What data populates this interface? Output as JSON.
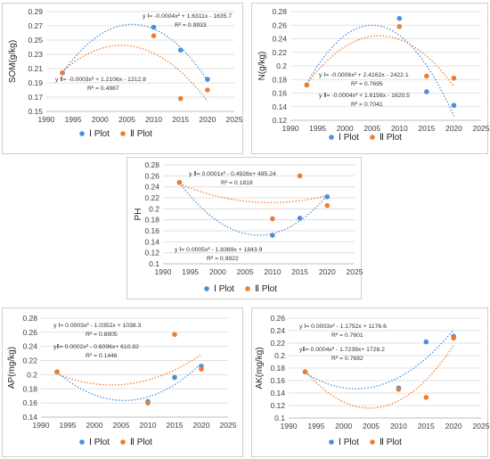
{
  "chart_data": [
    {
      "type": "scatter",
      "ylabel": "SOM(g/kg)",
      "xlim": [
        1990,
        2025
      ],
      "ylim": [
        0.15,
        0.29
      ],
      "x_ticks": [
        "1990",
        "1995",
        "2000",
        "2005",
        "2010",
        "2015",
        "2020",
        "2025"
      ],
      "y_ticks": [
        "0.15",
        "0.17",
        "0.19",
        "0.21",
        "0.23",
        "0.25",
        "0.27",
        "0.29"
      ],
      "series": [
        {
          "name": "Ⅰ Plot",
          "color": "#4a90d9",
          "x": [
            1993,
            2010,
            2015,
            2020
          ],
          "y": [
            0.204,
            0.268,
            0.236,
            0.195
          ],
          "fit": [
            -0.0004,
            1.6311,
            -1635.7
          ]
        },
        {
          "name": "Ⅱ Plot",
          "color": "#ed7d31",
          "x": [
            1993,
            2010,
            2015,
            2020
          ],
          "y": [
            0.204,
            0.256,
            0.168,
            0.18
          ],
          "fit": [
            -0.0003,
            1.2106,
            -1212.8
          ]
        }
      ],
      "equations": [
        {
          "line1": "y Ⅰ= -0.0004x² + 1.6311x - 1635.7",
          "line2": "R² = 0.9933"
        },
        {
          "line1": "y Ⅱ= -0.0003x² + 1.2106x - 1212.8",
          "line2": "R² = 0.4987"
        }
      ],
      "legend": [
        "Ⅰ Plot",
        "Ⅱ Plot"
      ]
    },
    {
      "type": "scatter",
      "ylabel": "N(g/kg)",
      "xlim": [
        1990,
        2025
      ],
      "ylim": [
        0.12,
        0.28
      ],
      "x_ticks": [
        "1990",
        "1995",
        "2000",
        "2005",
        "2010",
        "2015",
        "2020",
        "2025"
      ],
      "y_ticks": [
        "0.12",
        "0.14",
        "0.16",
        "0.18",
        "0.2",
        "0.22",
        "0.24",
        "0.26",
        "0.28"
      ],
      "series": [
        {
          "name": "Ⅰ Plot",
          "color": "#4a90d9",
          "x": [
            1993,
            2010,
            2015,
            2020
          ],
          "y": [
            0.172,
            0.27,
            0.162,
            0.142
          ],
          "fit": [
            -0.0006,
            2.4162,
            -2422.1
          ]
        },
        {
          "name": "Ⅱ Plot",
          "color": "#ed7d31",
          "x": [
            1993,
            2010,
            2015,
            2020
          ],
          "y": [
            0.172,
            0.258,
            0.185,
            0.182
          ],
          "fit": [
            -0.0004,
            1.6156,
            -1620.5
          ]
        }
      ],
      "equations": [
        {
          "line1": "y Ⅰ= -0.0006x² + 2.4162x - 2422.1",
          "line2": "R² = 0.7695"
        },
        {
          "line1": "y Ⅱ= -0.0004x² + 1.6156x - 1620.5",
          "line2": "R² = 0.7041"
        }
      ],
      "legend": [
        "Ⅰ Plot",
        "Ⅱ Plot"
      ]
    },
    {
      "type": "scatter",
      "ylabel": "PH",
      "xlim": [
        1990,
        2025
      ],
      "ylim": [
        0.1,
        0.28
      ],
      "x_ticks": [
        "1990",
        "1995",
        "2000",
        "2005",
        "2010",
        "2015",
        "2020",
        "2025"
      ],
      "y_ticks": [
        "0.1",
        "0.12",
        "0.14",
        "0.16",
        "0.18",
        "0.2",
        "0.22",
        "0.24",
        "0.26",
        "0.28"
      ],
      "series": [
        {
          "name": "Ⅰ Plot",
          "color": "#4a90d9",
          "x": [
            1993,
            2010,
            2015,
            2020
          ],
          "y": [
            0.248,
            0.152,
            0.183,
            0.222
          ],
          "fit": [
            0.0005,
            -1.8369,
            1843.9
          ]
        },
        {
          "name": "Ⅱ Plot",
          "color": "#ed7d31",
          "x": [
            1993,
            2010,
            2015,
            2020
          ],
          "y": [
            0.248,
            0.182,
            0.26,
            0.206
          ],
          "fit": [
            0.0001,
            -0.4926,
            495.24
          ]
        }
      ],
      "equations": [
        {
          "line1": "y Ⅱ= 0.0001x² - 0.4926x+ 495.24",
          "line2": "R² = 0.1819"
        },
        {
          "line1": "y Ⅰ= 0.0005x² - 1.8369x + 1843.9",
          "line2": "R² = 0.9922"
        }
      ],
      "legend": [
        "Ⅰ Plot",
        "Ⅱ Plot"
      ]
    },
    {
      "type": "scatter",
      "ylabel": "AP(mg/kg)",
      "xlim": [
        1990,
        2025
      ],
      "ylim": [
        0.14,
        0.28
      ],
      "x_ticks": [
        "1990",
        "1995",
        "2000",
        "2005",
        "2010",
        "2015",
        "2020",
        "2025"
      ],
      "y_ticks": [
        "0.14",
        "0.16",
        "0.18",
        "0.2",
        "0.22",
        "0.24",
        "0.26",
        "0.28"
      ],
      "series": [
        {
          "name": "Ⅰ Plot",
          "color": "#4a90d9",
          "x": [
            1993,
            2010,
            2015,
            2020
          ],
          "y": [
            0.204,
            0.162,
            0.196,
            0.212
          ],
          "fit": [
            0.0003,
            -1.0352,
            1038.3
          ]
        },
        {
          "name": "Ⅱ Plot",
          "color": "#ed7d31",
          "x": [
            1993,
            2010,
            2015,
            2020
          ],
          "y": [
            0.204,
            0.16,
            0.257,
            0.208
          ],
          "fit": [
            0.0002,
            -0.6096,
            610.82
          ]
        }
      ],
      "equations": [
        {
          "line1": "y Ⅰ= 0.0003x² - 1.0352x + 1038.3",
          "line2": "R² = 0.8905"
        },
        {
          "line1": "yⅡ= 0.0002x² - 0.6096x+ 610.82",
          "line2": "R² = 0.1446"
        }
      ],
      "legend": [
        "Ⅰ Plot",
        "Ⅱ Plot"
      ]
    },
    {
      "type": "scatter",
      "ylabel": "AK(mg/kg)",
      "xlim": [
        1990,
        2025
      ],
      "ylim": [
        0.1,
        0.26
      ],
      "x_ticks": [
        "1990",
        "1995",
        "2000",
        "2005",
        "2010",
        "2015",
        "2020",
        "2025"
      ],
      "y_ticks": [
        "0.1",
        "0.12",
        "0.14",
        "0.16",
        "0.18",
        "0.2",
        "0.22",
        "0.24",
        "0.26"
      ],
      "series": [
        {
          "name": "Ⅰ Plot",
          "color": "#4a90d9",
          "x": [
            1993,
            2010,
            2015,
            2020
          ],
          "y": [
            0.174,
            0.148,
            0.222,
            0.231
          ],
          "fit": [
            0.0003,
            -1.1752,
            1176.6
          ]
        },
        {
          "name": "Ⅱ Plot",
          "color": "#ed7d31",
          "x": [
            1993,
            2010,
            2015,
            2020
          ],
          "y": [
            0.174,
            0.146,
            0.133,
            0.228
          ],
          "fit": [
            0.0004,
            -1.7239,
            1728.2
          ]
        }
      ],
      "equations": [
        {
          "line1": "y Ⅰ= 0.0003x² - 1.1752x + 1176.6",
          "line2": "R² = 0.7601"
        },
        {
          "line1": "yⅡ= 0.0004x² - 1.7239x+ 1728.2",
          "line2": "R² = 0.7692"
        }
      ],
      "legend": [
        "Ⅰ Plot",
        "Ⅱ Plot"
      ]
    }
  ]
}
